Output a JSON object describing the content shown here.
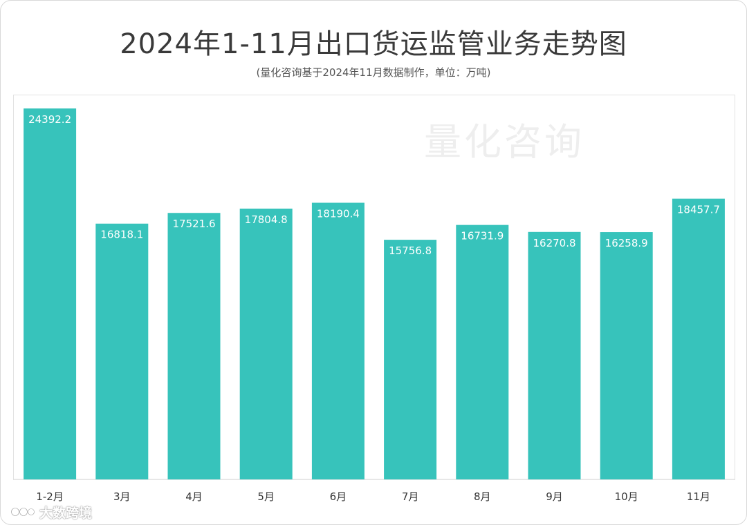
{
  "title": "2024年1-11月出口货运监管业务走势图",
  "subtitle": "(量化咨询基于2024年11月数据制作，单位：万吨)",
  "watermark_text": "量化咨询",
  "brand_text": "大数跨境",
  "colors": {
    "bar": "#37c3bb",
    "label": "#ffffff",
    "axis_text": "#333333"
  },
  "chart_data": {
    "type": "bar",
    "title": "2024年1-11月出口货运监管业务走势图",
    "xlabel": "",
    "ylabel": "",
    "categories": [
      "1-2月",
      "3月",
      "4月",
      "5月",
      "6月",
      "7月",
      "8月",
      "9月",
      "10月",
      "11月"
    ],
    "series": [
      {
        "values": [
          24392.2,
          16818.1,
          17521.6,
          17804.8,
          18190.4,
          15756.8,
          16731.9,
          16270.8,
          16258.9,
          18457.7
        ]
      }
    ],
    "ylim": [
      0,
      25300
    ],
    "grid": false,
    "legend": "none",
    "data_labels": "inside-top"
  }
}
